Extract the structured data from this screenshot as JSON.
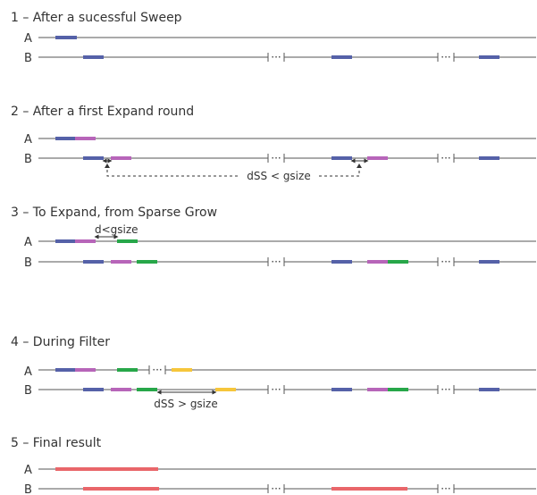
{
  "colors": {
    "line": "#555555",
    "blue": "#5561a8",
    "magenta": "#b765b9",
    "green": "#27a749",
    "yellow": "#f6c63b",
    "red": "#e9666a",
    "text": "#333333"
  },
  "stages": [
    {
      "title": "1 – After a sucessful Sweep",
      "rows": [
        {
          "label": "A",
          "breaks": [],
          "segments": [
            {
              "color": "blue"
            }
          ]
        },
        {
          "label": "B",
          "breaks": [
            {
              "text": "···"
            },
            {
              "text": "···"
            }
          ],
          "segments": [
            {
              "color": "blue"
            },
            {
              "color": "blue"
            },
            {
              "color": "blue"
            }
          ]
        }
      ]
    },
    {
      "title": "2 – After a first Expand round",
      "rows": [
        {
          "label": "A",
          "breaks": [],
          "segments": [
            {
              "color": "blue"
            },
            {
              "color": "magenta"
            }
          ]
        },
        {
          "label": "B",
          "breaks": [
            {
              "text": "···"
            },
            {
              "text": "···"
            }
          ],
          "segments": [
            {
              "color": "blue"
            },
            {
              "color": "magenta"
            },
            {
              "color": "blue"
            },
            {
              "color": "magenta"
            },
            {
              "color": "blue"
            }
          ]
        }
      ],
      "annotation": {
        "text": "dSS < gsize"
      }
    },
    {
      "title": "3 – To Expand, from Sparse Grow",
      "rows": [
        {
          "label": "A",
          "breaks": [],
          "segments": [
            {
              "color": "blue"
            },
            {
              "color": "magenta"
            },
            {
              "color": "green"
            }
          ]
        },
        {
          "label": "B",
          "breaks": [
            {
              "text": "···"
            },
            {
              "text": "···"
            }
          ],
          "segments": [
            {
              "color": "blue"
            },
            {
              "color": "magenta"
            },
            {
              "color": "green"
            },
            {
              "color": "blue"
            },
            {
              "color": "magenta"
            },
            {
              "color": "green"
            },
            {
              "color": "blue"
            }
          ]
        }
      ],
      "annotation": {
        "text": "d<gsize"
      }
    },
    {
      "title": "4 – During Filter",
      "rows": [
        {
          "label": "A",
          "breaks": [
            {
              "text": "···"
            }
          ],
          "segments": [
            {
              "color": "blue"
            },
            {
              "color": "magenta"
            },
            {
              "color": "green"
            },
            {
              "color": "yellow"
            }
          ]
        },
        {
          "label": "B",
          "breaks": [
            {
              "text": "···"
            },
            {
              "text": "···"
            }
          ],
          "segments": [
            {
              "color": "blue"
            },
            {
              "color": "magenta"
            },
            {
              "color": "green"
            },
            {
              "color": "yellow"
            },
            {
              "color": "blue"
            },
            {
              "color": "magenta"
            },
            {
              "color": "green"
            },
            {
              "color": "blue"
            }
          ]
        }
      ],
      "annotation": {
        "text": "dSS > gsize"
      }
    },
    {
      "title": "5 – Final result",
      "rows": [
        {
          "label": "A",
          "breaks": [],
          "segments": [
            {
              "color": "red"
            }
          ]
        },
        {
          "label": "B",
          "breaks": [
            {
              "text": "···"
            },
            {
              "text": "···"
            }
          ],
          "segments": [
            {
              "color": "red"
            },
            {
              "color": "red"
            }
          ]
        }
      ]
    }
  ]
}
